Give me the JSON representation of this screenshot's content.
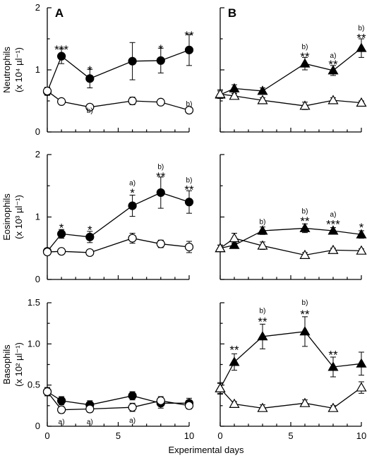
{
  "chart_data": [
    {
      "type": "line",
      "panel": "A",
      "panel_label": "A",
      "row": 0,
      "col": 0,
      "ylabel": "Neutrophils",
      "ylabel_unit": "(x 10⁴ µl⁻¹)",
      "ylim": [
        0,
        2
      ],
      "yticks": [
        "0",
        "1",
        "2"
      ],
      "xlim": [
        0,
        10
      ],
      "xticks": [],
      "series": [
        {
          "marker": "filled-circle",
          "x": [
            0,
            1,
            3,
            6,
            8,
            10
          ],
          "y": [
            0.65,
            1.22,
            0.86,
            1.14,
            1.15,
            1.32
          ],
          "err": [
            0.06,
            0.12,
            0.15,
            0.3,
            0.2,
            0.25
          ]
        },
        {
          "marker": "open-circle",
          "x": [
            0,
            1,
            3,
            6,
            8,
            10
          ],
          "y": [
            0.66,
            0.49,
            0.4,
            0.5,
            0.48,
            0.35
          ],
          "err": [
            0.06,
            0.03,
            0.03,
            0.06,
            0.04,
            0.05
          ]
        }
      ],
      "annotations": [
        {
          "x": 1,
          "y": 1.34,
          "text": "***",
          "kind": "sig"
        },
        {
          "x": 3,
          "y": 1.01,
          "text": "*",
          "kind": "sig"
        },
        {
          "x": 8,
          "y": 1.35,
          "text": "*",
          "kind": "sig"
        },
        {
          "x": 10,
          "y": 1.57,
          "text": "**",
          "kind": "sig"
        },
        {
          "x": 3,
          "y": 0.34,
          "text": "b)",
          "kind": "note"
        },
        {
          "x": 10,
          "y": 0.45,
          "text": "b)",
          "kind": "note"
        }
      ]
    },
    {
      "type": "line",
      "panel": "B",
      "panel_label": "B",
      "row": 0,
      "col": 1,
      "ylim": [
        0,
        2
      ],
      "yticks": [],
      "xlim": [
        0,
        10
      ],
      "xticks": [],
      "series": [
        {
          "marker": "filled-triangle",
          "x": [
            0,
            1,
            3,
            6,
            8,
            10
          ],
          "y": [
            0.6,
            0.7,
            0.66,
            1.1,
            0.99,
            1.35
          ],
          "err": [
            0.06,
            0.06,
            0.05,
            0.1,
            0.08,
            0.15
          ]
        },
        {
          "marker": "open-triangle",
          "x": [
            0,
            1,
            3,
            6,
            8,
            10
          ],
          "y": [
            0.61,
            0.58,
            0.51,
            0.42,
            0.51,
            0.47
          ],
          "err": [
            0.07,
            0.04,
            0.04,
            0.06,
            0.04,
            0.03
          ]
        }
      ],
      "annotations": [
        {
          "x": 6,
          "y": 1.23,
          "text": "**",
          "kind": "sig"
        },
        {
          "x": 6,
          "y": 1.37,
          "text": "b)",
          "kind": "note"
        },
        {
          "x": 8,
          "y": 1.1,
          "text": "**",
          "kind": "sig"
        },
        {
          "x": 8,
          "y": 1.23,
          "text": "a)",
          "kind": "note"
        },
        {
          "x": 10,
          "y": 1.53,
          "text": "**",
          "kind": "sig"
        },
        {
          "x": 10,
          "y": 1.67,
          "text": "b)",
          "kind": "note"
        }
      ]
    },
    {
      "type": "line",
      "panel": "A",
      "panel_label": "",
      "row": 1,
      "col": 0,
      "ylabel": "Eosinophils",
      "ylabel_unit": "(x 10³ µl⁻¹)",
      "ylim": [
        0,
        2
      ],
      "yticks": [
        "0",
        "1",
        "2"
      ],
      "xlim": [
        0,
        10
      ],
      "xticks": [],
      "series": [
        {
          "marker": "filled-circle",
          "x": [
            0,
            1,
            3,
            6,
            8,
            10
          ],
          "y": [
            0.45,
            0.73,
            0.68,
            1.18,
            1.39,
            1.24
          ],
          "err": [
            0.05,
            0.07,
            0.09,
            0.17,
            0.25,
            0.18
          ]
        },
        {
          "marker": "open-circle",
          "x": [
            0,
            1,
            3,
            6,
            8,
            10
          ],
          "y": [
            0.44,
            0.45,
            0.43,
            0.66,
            0.57,
            0.52
          ],
          "err": [
            0.05,
            0.04,
            0.04,
            0.08,
            0.06,
            0.09
          ]
        }
      ],
      "annotations": [
        {
          "x": 1,
          "y": 0.84,
          "text": "*",
          "kind": "sig"
        },
        {
          "x": 3,
          "y": 0.81,
          "text": "*",
          "kind": "sig"
        },
        {
          "x": 6,
          "y": 1.4,
          "text": "*",
          "kind": "sig"
        },
        {
          "x": 6,
          "y": 1.54,
          "text": "a)",
          "kind": "note"
        },
        {
          "x": 8,
          "y": 1.66,
          "text": "**",
          "kind": "sig"
        },
        {
          "x": 8,
          "y": 1.8,
          "text": "b)",
          "kind": "note"
        },
        {
          "x": 10,
          "y": 1.45,
          "text": "**",
          "kind": "sig"
        },
        {
          "x": 10,
          "y": 1.59,
          "text": "b)",
          "kind": "note"
        }
      ]
    },
    {
      "type": "line",
      "panel": "B",
      "panel_label": "",
      "row": 1,
      "col": 1,
      "ylim": [
        0,
        2
      ],
      "yticks": [],
      "xlim": [
        0,
        10
      ],
      "xticks": [],
      "series": [
        {
          "marker": "filled-triangle",
          "x": [
            0,
            1,
            3,
            6,
            8,
            10
          ],
          "y": [
            0.5,
            0.55,
            0.78,
            0.82,
            0.78,
            0.72
          ],
          "err": [
            0.05,
            0.05,
            0.06,
            0.07,
            0.05,
            0.06
          ]
        },
        {
          "marker": "open-triangle",
          "x": [
            0,
            1,
            3,
            6,
            8,
            10
          ],
          "y": [
            0.5,
            0.66,
            0.54,
            0.39,
            0.47,
            0.46
          ],
          "err": [
            0.05,
            0.08,
            0.06,
            0.04,
            0.03,
            0.03
          ]
        }
      ],
      "annotations": [
        {
          "x": 3,
          "y": 0.92,
          "text": "b)",
          "kind": "note"
        },
        {
          "x": 6,
          "y": 0.95,
          "text": "**",
          "kind": "sig"
        },
        {
          "x": 6,
          "y": 1.09,
          "text": "b)",
          "kind": "note"
        },
        {
          "x": 8,
          "y": 0.9,
          "text": "***",
          "kind": "sig"
        },
        {
          "x": 8,
          "y": 1.04,
          "text": "a)",
          "kind": "note"
        },
        {
          "x": 10,
          "y": 0.85,
          "text": "*",
          "kind": "sig"
        }
      ]
    },
    {
      "type": "line",
      "panel": "A",
      "panel_label": "",
      "row": 2,
      "col": 0,
      "ylabel": "Basophils",
      "ylabel_unit": "(x 10² µl⁻¹)",
      "ylim": [
        0,
        1.5
      ],
      "yticks": [
        "0",
        "0.5",
        "1.0",
        "1.5"
      ],
      "xlim": [
        0,
        10
      ],
      "xticks": [
        "0",
        "5",
        "10"
      ],
      "series": [
        {
          "marker": "filled-circle",
          "x": [
            0,
            1,
            3,
            6,
            8,
            10
          ],
          "y": [
            0.42,
            0.31,
            0.26,
            0.37,
            0.28,
            0.28
          ],
          "err": [
            0.05,
            0.05,
            0.05,
            0.05,
            0.06,
            0.06
          ]
        },
        {
          "marker": "open-circle",
          "x": [
            0,
            1,
            3,
            6,
            8,
            10
          ],
          "y": [
            0.42,
            0.2,
            0.21,
            0.23,
            0.31,
            0.25
          ],
          "err": [
            0.05,
            0.04,
            0.04,
            0.05,
            0.05,
            0.04
          ]
        }
      ],
      "annotations": [
        {
          "x": 1,
          "y": 0.05,
          "text": "a)",
          "kind": "note"
        },
        {
          "x": 3,
          "y": 0.05,
          "text": "a)",
          "kind": "note"
        },
        {
          "x": 6,
          "y": 0.07,
          "text": "a)",
          "kind": "note"
        }
      ]
    },
    {
      "type": "line",
      "panel": "B",
      "panel_label": "",
      "row": 2,
      "col": 1,
      "ylim": [
        0,
        1.5
      ],
      "yticks": [],
      "xlim": [
        0,
        10
      ],
      "xticks": [
        "0",
        "5",
        "10"
      ],
      "series": [
        {
          "marker": "filled-triangle",
          "x": [
            0,
            1,
            3,
            6,
            8,
            10
          ],
          "y": [
            0.46,
            0.78,
            1.09,
            1.15,
            0.72,
            0.76
          ],
          "err": [
            0.07,
            0.1,
            0.15,
            0.18,
            0.12,
            0.14
          ]
        },
        {
          "marker": "open-triangle",
          "x": [
            0,
            1,
            3,
            6,
            8,
            10
          ],
          "y": [
            0.46,
            0.27,
            0.22,
            0.28,
            0.22,
            0.47
          ],
          "err": [
            0.06,
            0.03,
            0.04,
            0.04,
            0.03,
            0.07
          ]
        }
      ],
      "annotations": [
        {
          "x": 1,
          "y": 0.94,
          "text": "**",
          "kind": "sig"
        },
        {
          "x": 3,
          "y": 1.28,
          "text": "**",
          "kind": "sig"
        },
        {
          "x": 3,
          "y": 1.4,
          "text": "b)",
          "kind": "note"
        },
        {
          "x": 6,
          "y": 1.37,
          "text": "**",
          "kind": "sig"
        },
        {
          "x": 6,
          "y": 1.5,
          "text": "b)",
          "kind": "note"
        },
        {
          "x": 8,
          "y": 0.88,
          "text": "**",
          "kind": "sig"
        }
      ]
    }
  ],
  "figure": {
    "xlabel": "Experimental days"
  }
}
